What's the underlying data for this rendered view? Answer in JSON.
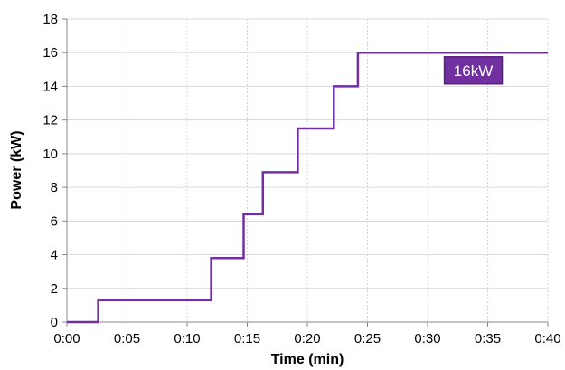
{
  "chart_data": {
    "type": "line",
    "xlabel": "Time (min)",
    "ylabel": "Power (kW)",
    "xlim": [
      0,
      40
    ],
    "ylim": [
      0,
      18
    ],
    "x_ticks": [
      0,
      5,
      10,
      15,
      20,
      25,
      30,
      35,
      40
    ],
    "x_tick_labels": [
      "0:00",
      "0:05",
      "0:10",
      "0:15",
      "0:20",
      "0:25",
      "0:30",
      "0:35",
      "0:40"
    ],
    "y_ticks": [
      0,
      2,
      4,
      6,
      8,
      10,
      12,
      14,
      16,
      18
    ],
    "y_tick_labels": [
      "0",
      "2",
      "4",
      "6",
      "8",
      "10",
      "12",
      "14",
      "16",
      "18"
    ],
    "grid": true,
    "series": [
      {
        "color": "#7030a0",
        "x": [
          0,
          2.6,
          2.6,
          12,
          12,
          14.7,
          14.7,
          16.3,
          16.3,
          19.2,
          19.2,
          22.2,
          22.2,
          24.2,
          24.2,
          40
        ],
        "y": [
          0,
          0,
          1.3,
          1.3,
          3.8,
          3.8,
          6.4,
          6.4,
          8.9,
          8.9,
          11.5,
          11.5,
          14.0,
          14.0,
          16.0,
          16.0
        ]
      }
    ],
    "annotations": [
      {
        "text": "16kW",
        "x": 33.8,
        "y": 14.95,
        "background": "#7030a0",
        "text_color": "#ffffff"
      }
    ]
  }
}
